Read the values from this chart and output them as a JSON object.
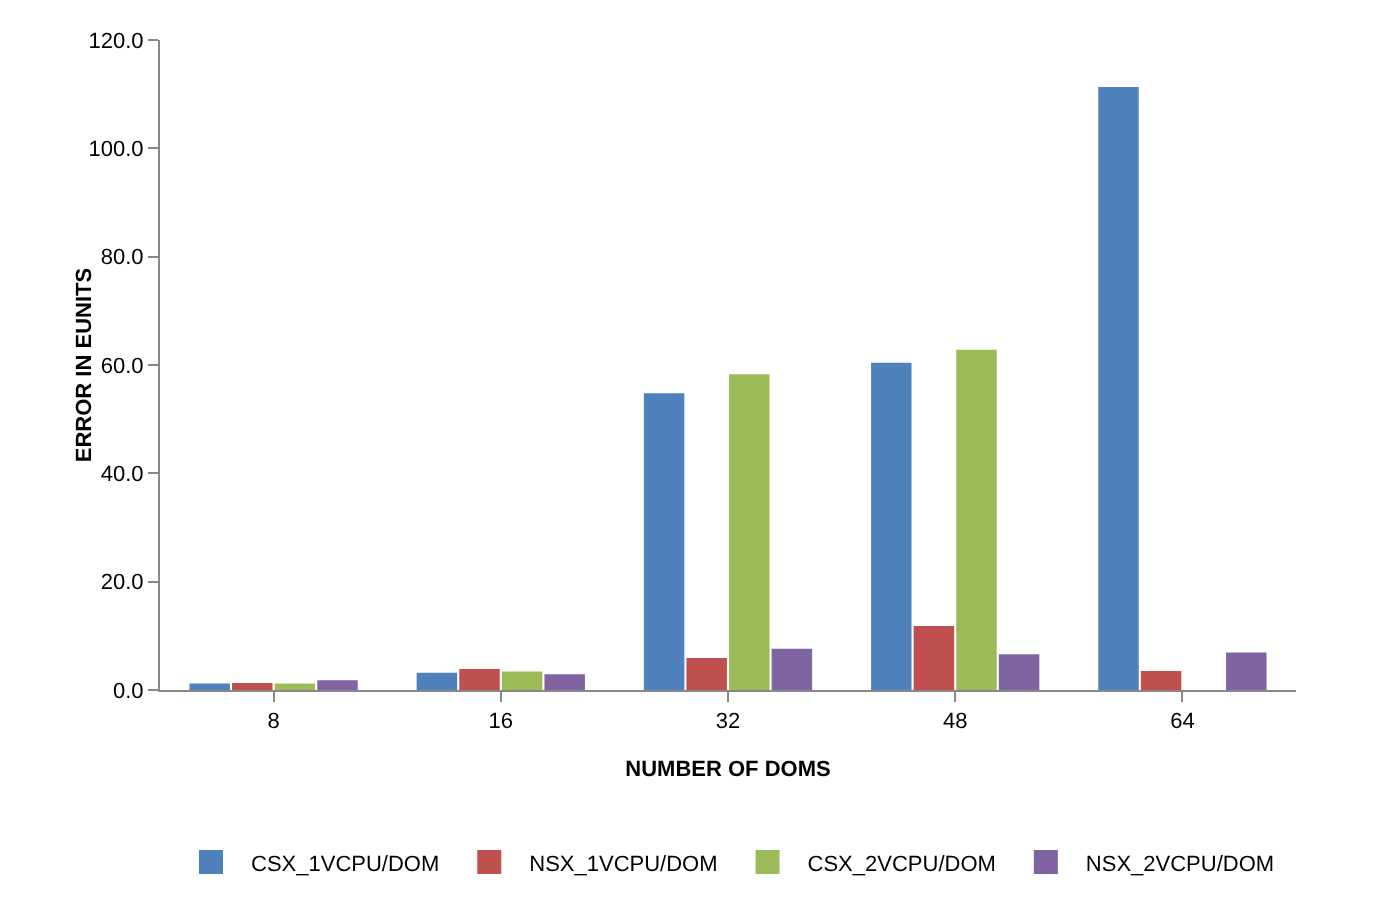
{
  "chart_data": {
    "type": "bar",
    "xlabel": "NUMBER OF DOMS",
    "ylabel": "ERROR IN EUNITS",
    "categories": [
      "8",
      "16",
      "32",
      "48",
      "64"
    ],
    "series": [
      {
        "name": "CSX_1VCPU/DOM",
        "color": "#4f81bd",
        "values": [
          1.2,
          3.2,
          54.8,
          60.4,
          111.3
        ]
      },
      {
        "name": "NSX_1VCPU/DOM",
        "color": "#c0504d",
        "values": [
          1.3,
          3.9,
          5.9,
          11.8,
          3.5
        ]
      },
      {
        "name": "CSX_2VCPU/DOM",
        "color": "#9bbb59",
        "values": [
          1.2,
          3.4,
          58.3,
          62.8,
          null
        ]
      },
      {
        "name": "NSX_2VCPU/DOM",
        "color": "#8064a2",
        "values": [
          1.8,
          2.9,
          7.6,
          6.6,
          6.9
        ]
      }
    ],
    "ylim": [
      0,
      120
    ],
    "yticks": [
      {
        "value": 0,
        "label": "0.0"
      },
      {
        "value": 20,
        "label": "20.0"
      },
      {
        "value": 40,
        "label": "40.0"
      },
      {
        "value": 60,
        "label": "60.0"
      },
      {
        "value": 80,
        "label": "80.0"
      },
      {
        "value": 100,
        "label": "100.0"
      },
      {
        "value": 120,
        "label": "120.0"
      }
    ],
    "grid": false,
    "legend": "bottom"
  }
}
